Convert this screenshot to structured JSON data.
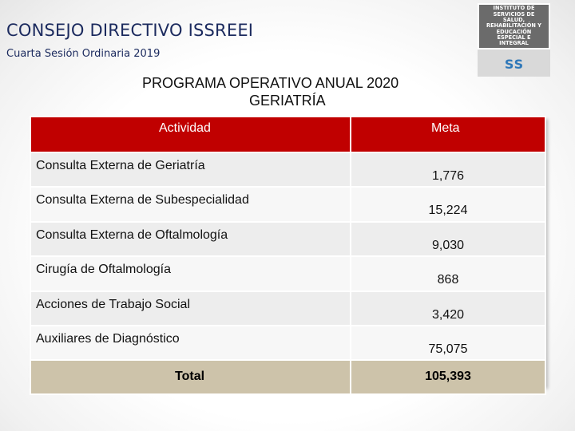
{
  "header": {
    "title": "CONSEJO DIRECTIVO ISSREEI",
    "subtitle": "Cuarta Sesión Ordinaria 2019"
  },
  "logo": {
    "institution_text": "INSTITUTO DE SERVICIOS DE SALUD, REHABILITACIÓN Y EDUCACIÓN ESPECIAL E INTEGRAL",
    "acronym": "SS"
  },
  "program": {
    "title_line1": "PROGRAMA OPERATIVO ANUAL 2020",
    "title_line2": "GERIATRÍA"
  },
  "table": {
    "columns": [
      "Actividad",
      "Meta"
    ],
    "rows": [
      {
        "actividad": "Consulta Externa de Geriatría",
        "meta": "1,776"
      },
      {
        "actividad": "Consulta Externa de Subespecialidad",
        "meta": "15,224"
      },
      {
        "actividad": "Consulta Externa de Oftalmología",
        "meta": "9,030"
      },
      {
        "actividad": "Cirugía de Oftalmología",
        "meta": "868"
      },
      {
        "actividad": "Acciones de Trabajo Social",
        "meta": "3,420"
      },
      {
        "actividad": "Auxiliares de Diagnóstico",
        "meta": "75,075"
      }
    ],
    "total": {
      "label": "Total",
      "value": "105,393"
    }
  },
  "colors": {
    "header_red": "#c00000",
    "total_tan": "#cdc3aa",
    "title_blue": "#1b2a5e",
    "logo_blue": "#2f78b9"
  }
}
